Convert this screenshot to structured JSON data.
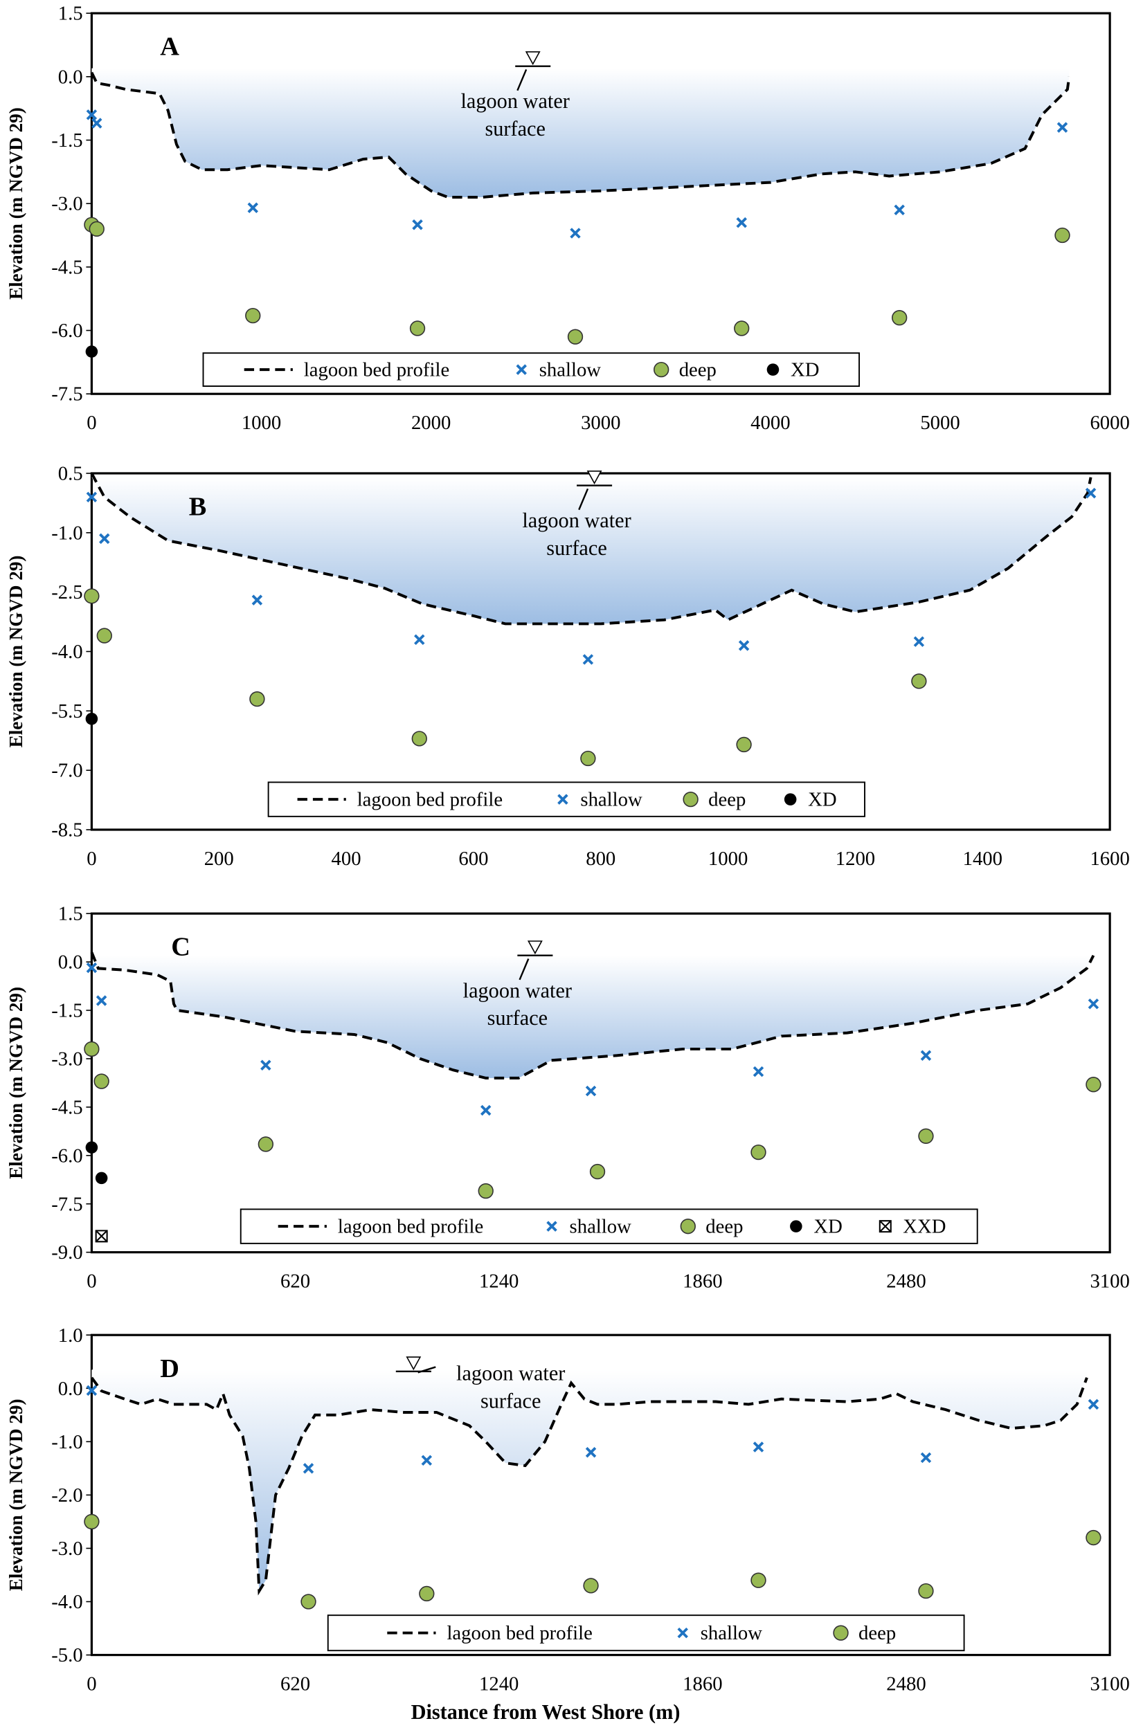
{
  "colors": {
    "shallow": "#1f73c2",
    "deep": "#98b954",
    "xd": "#000000",
    "water_top": "#ffffff",
    "water_bottom": "#9dbde3"
  },
  "chart_data": [
    {
      "type": "scatter",
      "panel": "A",
      "ylabel": "Elevation (m NGVD 29)",
      "xlabel": "",
      "xlim": [
        0,
        6000
      ],
      "ylim": [
        -7.5,
        1.5
      ],
      "xticks": [
        "0",
        "1000",
        "2000",
        "3000",
        "4000",
        "5000",
        "6000"
      ],
      "yticks": [
        "1.5",
        "0.0",
        "-1.5",
        "-3.0",
        "-4.5",
        "-6.0",
        "-7.5"
      ],
      "annotation": [
        "lagoon water",
        "surface"
      ],
      "water_surface_x": 2600,
      "legend": [
        "lagoon bed profile",
        "shallow",
        "deep",
        "XD"
      ],
      "series": [
        {
          "name": "lagoon bed profile",
          "kind": "dashed-line",
          "x": [
            0,
            30,
            100,
            200,
            400,
            450,
            500,
            550,
            650,
            800,
            1000,
            1200,
            1400,
            1600,
            1750,
            1850,
            2000,
            2100,
            2300,
            2600,
            3000,
            3500,
            4000,
            4300,
            4500,
            4700,
            5000,
            5300,
            5500,
            5600,
            5700,
            5750,
            5760
          ],
          "y": [
            0.1,
            -0.15,
            -0.2,
            -0.3,
            -0.4,
            -0.8,
            -1.6,
            -2.0,
            -2.2,
            -2.2,
            -2.1,
            -2.15,
            -2.2,
            -1.95,
            -1.9,
            -2.3,
            -2.7,
            -2.85,
            -2.85,
            -2.75,
            -2.7,
            -2.6,
            -2.5,
            -2.3,
            -2.25,
            -2.35,
            -2.25,
            -2.05,
            -1.7,
            -0.9,
            -0.5,
            -0.3,
            0.0
          ]
        },
        {
          "name": "shallow",
          "kind": "x",
          "x": [
            0,
            30,
            950,
            1920,
            2850,
            3830,
            4760,
            5720
          ],
          "y": [
            -0.9,
            -1.1,
            -3.1,
            -3.5,
            -3.7,
            -3.45,
            -3.15,
            -1.2
          ]
        },
        {
          "name": "deep",
          "kind": "circle",
          "x": [
            0,
            30,
            950,
            1920,
            2850,
            3830,
            4760,
            5720
          ],
          "y": [
            -3.5,
            -3.6,
            -5.65,
            -5.95,
            -6.15,
            -5.95,
            -5.7,
            -3.75
          ]
        },
        {
          "name": "XD",
          "kind": "dot",
          "x": [
            0
          ],
          "y": [
            -6.5
          ]
        }
      ]
    },
    {
      "type": "scatter",
      "panel": "B",
      "ylabel": "Elevation (m NGVD 29)",
      "xlabel": "",
      "xlim": [
        0,
        1600
      ],
      "ylim": [
        -8.5,
        0.5
      ],
      "xticks": [
        "0",
        "200",
        "400",
        "600",
        "800",
        "1000",
        "1200",
        "1400",
        "1600"
      ],
      "yticks": [
        "0.5",
        "-1.0",
        "-2.5",
        "-4.0",
        "-5.5",
        "-7.0",
        "-8.5"
      ],
      "annotation": [
        "lagoon water",
        "surface"
      ],
      "water_surface_x": 790,
      "legend": [
        "lagoon bed profile",
        "shallow",
        "deep",
        "XD"
      ],
      "series": [
        {
          "name": "lagoon bed profile",
          "kind": "dashed-line",
          "x": [
            0,
            20,
            60,
            120,
            200,
            300,
            400,
            460,
            520,
            600,
            650,
            800,
            900,
            980,
            1000,
            1040,
            1100,
            1150,
            1200,
            1300,
            1380,
            1440,
            1500,
            1540,
            1565,
            1570
          ],
          "y": [
            0.5,
            -0.1,
            -0.6,
            -1.2,
            -1.45,
            -1.8,
            -2.15,
            -2.4,
            -2.8,
            -3.1,
            -3.3,
            -3.3,
            -3.2,
            -2.95,
            -3.2,
            -2.9,
            -2.45,
            -2.8,
            -3.0,
            -2.75,
            -2.45,
            -1.9,
            -1.1,
            -0.6,
            0.0,
            0.4
          ]
        },
        {
          "name": "shallow",
          "kind": "x",
          "x": [
            0,
            20,
            260,
            515,
            780,
            1025,
            1300,
            1570
          ],
          "y": [
            -0.1,
            -1.15,
            -2.7,
            -3.7,
            -4.2,
            -3.85,
            -3.75,
            0.0
          ]
        },
        {
          "name": "deep",
          "kind": "circle",
          "x": [
            0,
            20,
            260,
            515,
            780,
            1025,
            1300
          ],
          "y": [
            -2.6,
            -3.6,
            -5.2,
            -6.2,
            -6.7,
            -6.35,
            -4.75
          ]
        },
        {
          "name": "XD",
          "kind": "dot",
          "x": [
            0
          ],
          "y": [
            -5.7
          ]
        }
      ]
    },
    {
      "type": "scatter",
      "panel": "C",
      "ylabel": "Elevation (m NGVD 29)",
      "xlabel": "",
      "xlim": [
        0,
        3100
      ],
      "ylim": [
        -9.0,
        1.5
      ],
      "xticks": [
        "0",
        "620",
        "1240",
        "1860",
        "2480",
        "3100"
      ],
      "yticks": [
        "1.5",
        "0.0",
        "-1.5",
        "-3.0",
        "-4.5",
        "-6.0",
        "-7.5",
        "-9.0"
      ],
      "annotation": [
        "lagoon water",
        "surface"
      ],
      "water_surface_x": 1350,
      "legend": [
        "lagoon bed profile",
        "shallow",
        "deep",
        "XD",
        "XXD"
      ],
      "series": [
        {
          "name": "lagoon bed profile",
          "kind": "dashed-line",
          "x": [
            0,
            20,
            100,
            200,
            240,
            250,
            260,
            400,
            620,
            800,
            900,
            1000,
            1100,
            1200,
            1300,
            1400,
            1600,
            1800,
            1950,
            2100,
            2300,
            2500,
            2700,
            2850,
            2950,
            3030,
            3050
          ],
          "y": [
            0.3,
            -0.2,
            -0.25,
            -0.4,
            -0.6,
            -1.3,
            -1.5,
            -1.7,
            -2.15,
            -2.25,
            -2.5,
            -3.0,
            -3.35,
            -3.6,
            -3.6,
            -3.05,
            -2.9,
            -2.7,
            -2.7,
            -2.3,
            -2.2,
            -1.9,
            -1.5,
            -1.3,
            -0.8,
            -0.2,
            0.2
          ]
        },
        {
          "name": "shallow",
          "kind": "x",
          "x": [
            0,
            30,
            530,
            1200,
            1520,
            2030,
            2540,
            3050
          ],
          "y": [
            -0.18,
            -1.2,
            -3.2,
            -4.6,
            -4.0,
            -3.4,
            -2.9,
            -1.3
          ]
        },
        {
          "name": "deep",
          "kind": "circle",
          "x": [
            0,
            30,
            530,
            1200,
            1540,
            2030,
            2540,
            3050
          ],
          "y": [
            -2.7,
            -3.7,
            -5.65,
            -7.1,
            -6.5,
            -5.9,
            -5.4,
            -3.8
          ]
        },
        {
          "name": "XD",
          "kind": "dot",
          "x": [
            0,
            30
          ],
          "y": [
            -5.75,
            -6.7
          ]
        },
        {
          "name": "XXD",
          "kind": "boxx",
          "x": [
            30
          ],
          "y": [
            -8.5
          ]
        }
      ]
    },
    {
      "type": "scatter",
      "panel": "D",
      "ylabel": "Elevation (m NGVD 29)",
      "xlabel": "Distance from West Shore (m)",
      "xlim": [
        0,
        3100
      ],
      "ylim": [
        -5.0,
        1.0
      ],
      "xticks": [
        "0",
        "620",
        "1240",
        "1860",
        "2480",
        "3100"
      ],
      "yticks": [
        "1.0",
        "0.0",
        "-1.0",
        "-2.0",
        "-3.0",
        "-4.0",
        "-5.0"
      ],
      "annotation": [
        "lagoon water",
        "surface"
      ],
      "water_surface_x": 980,
      "legend": [
        "lagoon bed profile",
        "shallow",
        "deep"
      ],
      "series": [
        {
          "name": "lagoon bed profile",
          "kind": "dashed-line",
          "x": [
            0,
            30,
            100,
            150,
            200,
            250,
            350,
            380,
            400,
            420,
            460,
            480,
            500,
            510,
            530,
            560,
            600,
            640,
            680,
            750,
            850,
            950,
            1050,
            1150,
            1200,
            1260,
            1320,
            1380,
            1430,
            1460,
            1500,
            1540,
            1600,
            1700,
            1900,
            2000,
            2100,
            2300,
            2400,
            2450,
            2500,
            2600,
            2700,
            2800,
            2900,
            2950,
            3000,
            3030
          ],
          "y": [
            0.2,
            -0.05,
            -0.2,
            -0.3,
            -0.2,
            -0.3,
            -0.3,
            -0.4,
            -0.1,
            -0.5,
            -0.9,
            -1.5,
            -2.5,
            -3.8,
            -3.6,
            -2.0,
            -1.5,
            -0.9,
            -0.5,
            -0.5,
            -0.4,
            -0.45,
            -0.45,
            -0.7,
            -1.0,
            -1.4,
            -1.45,
            -1.0,
            -0.3,
            0.1,
            -0.2,
            -0.3,
            -0.3,
            -0.25,
            -0.25,
            -0.3,
            -0.2,
            -0.25,
            -0.2,
            -0.1,
            -0.25,
            -0.4,
            -0.6,
            -0.75,
            -0.7,
            -0.6,
            -0.3,
            0.2
          ]
        },
        {
          "name": "shallow",
          "kind": "x",
          "x": [
            0,
            660,
            1020,
            1520,
            2030,
            2540,
            3050
          ],
          "y": [
            -0.04,
            -1.5,
            -1.35,
            -1.2,
            -1.1,
            -1.3,
            -0.3
          ]
        },
        {
          "name": "deep",
          "kind": "circle",
          "x": [
            0,
            660,
            1020,
            1520,
            2030,
            2540,
            3050
          ],
          "y": [
            -2.5,
            -4.0,
            -3.85,
            -3.7,
            -3.6,
            -3.8,
            -2.8
          ]
        }
      ]
    }
  ]
}
